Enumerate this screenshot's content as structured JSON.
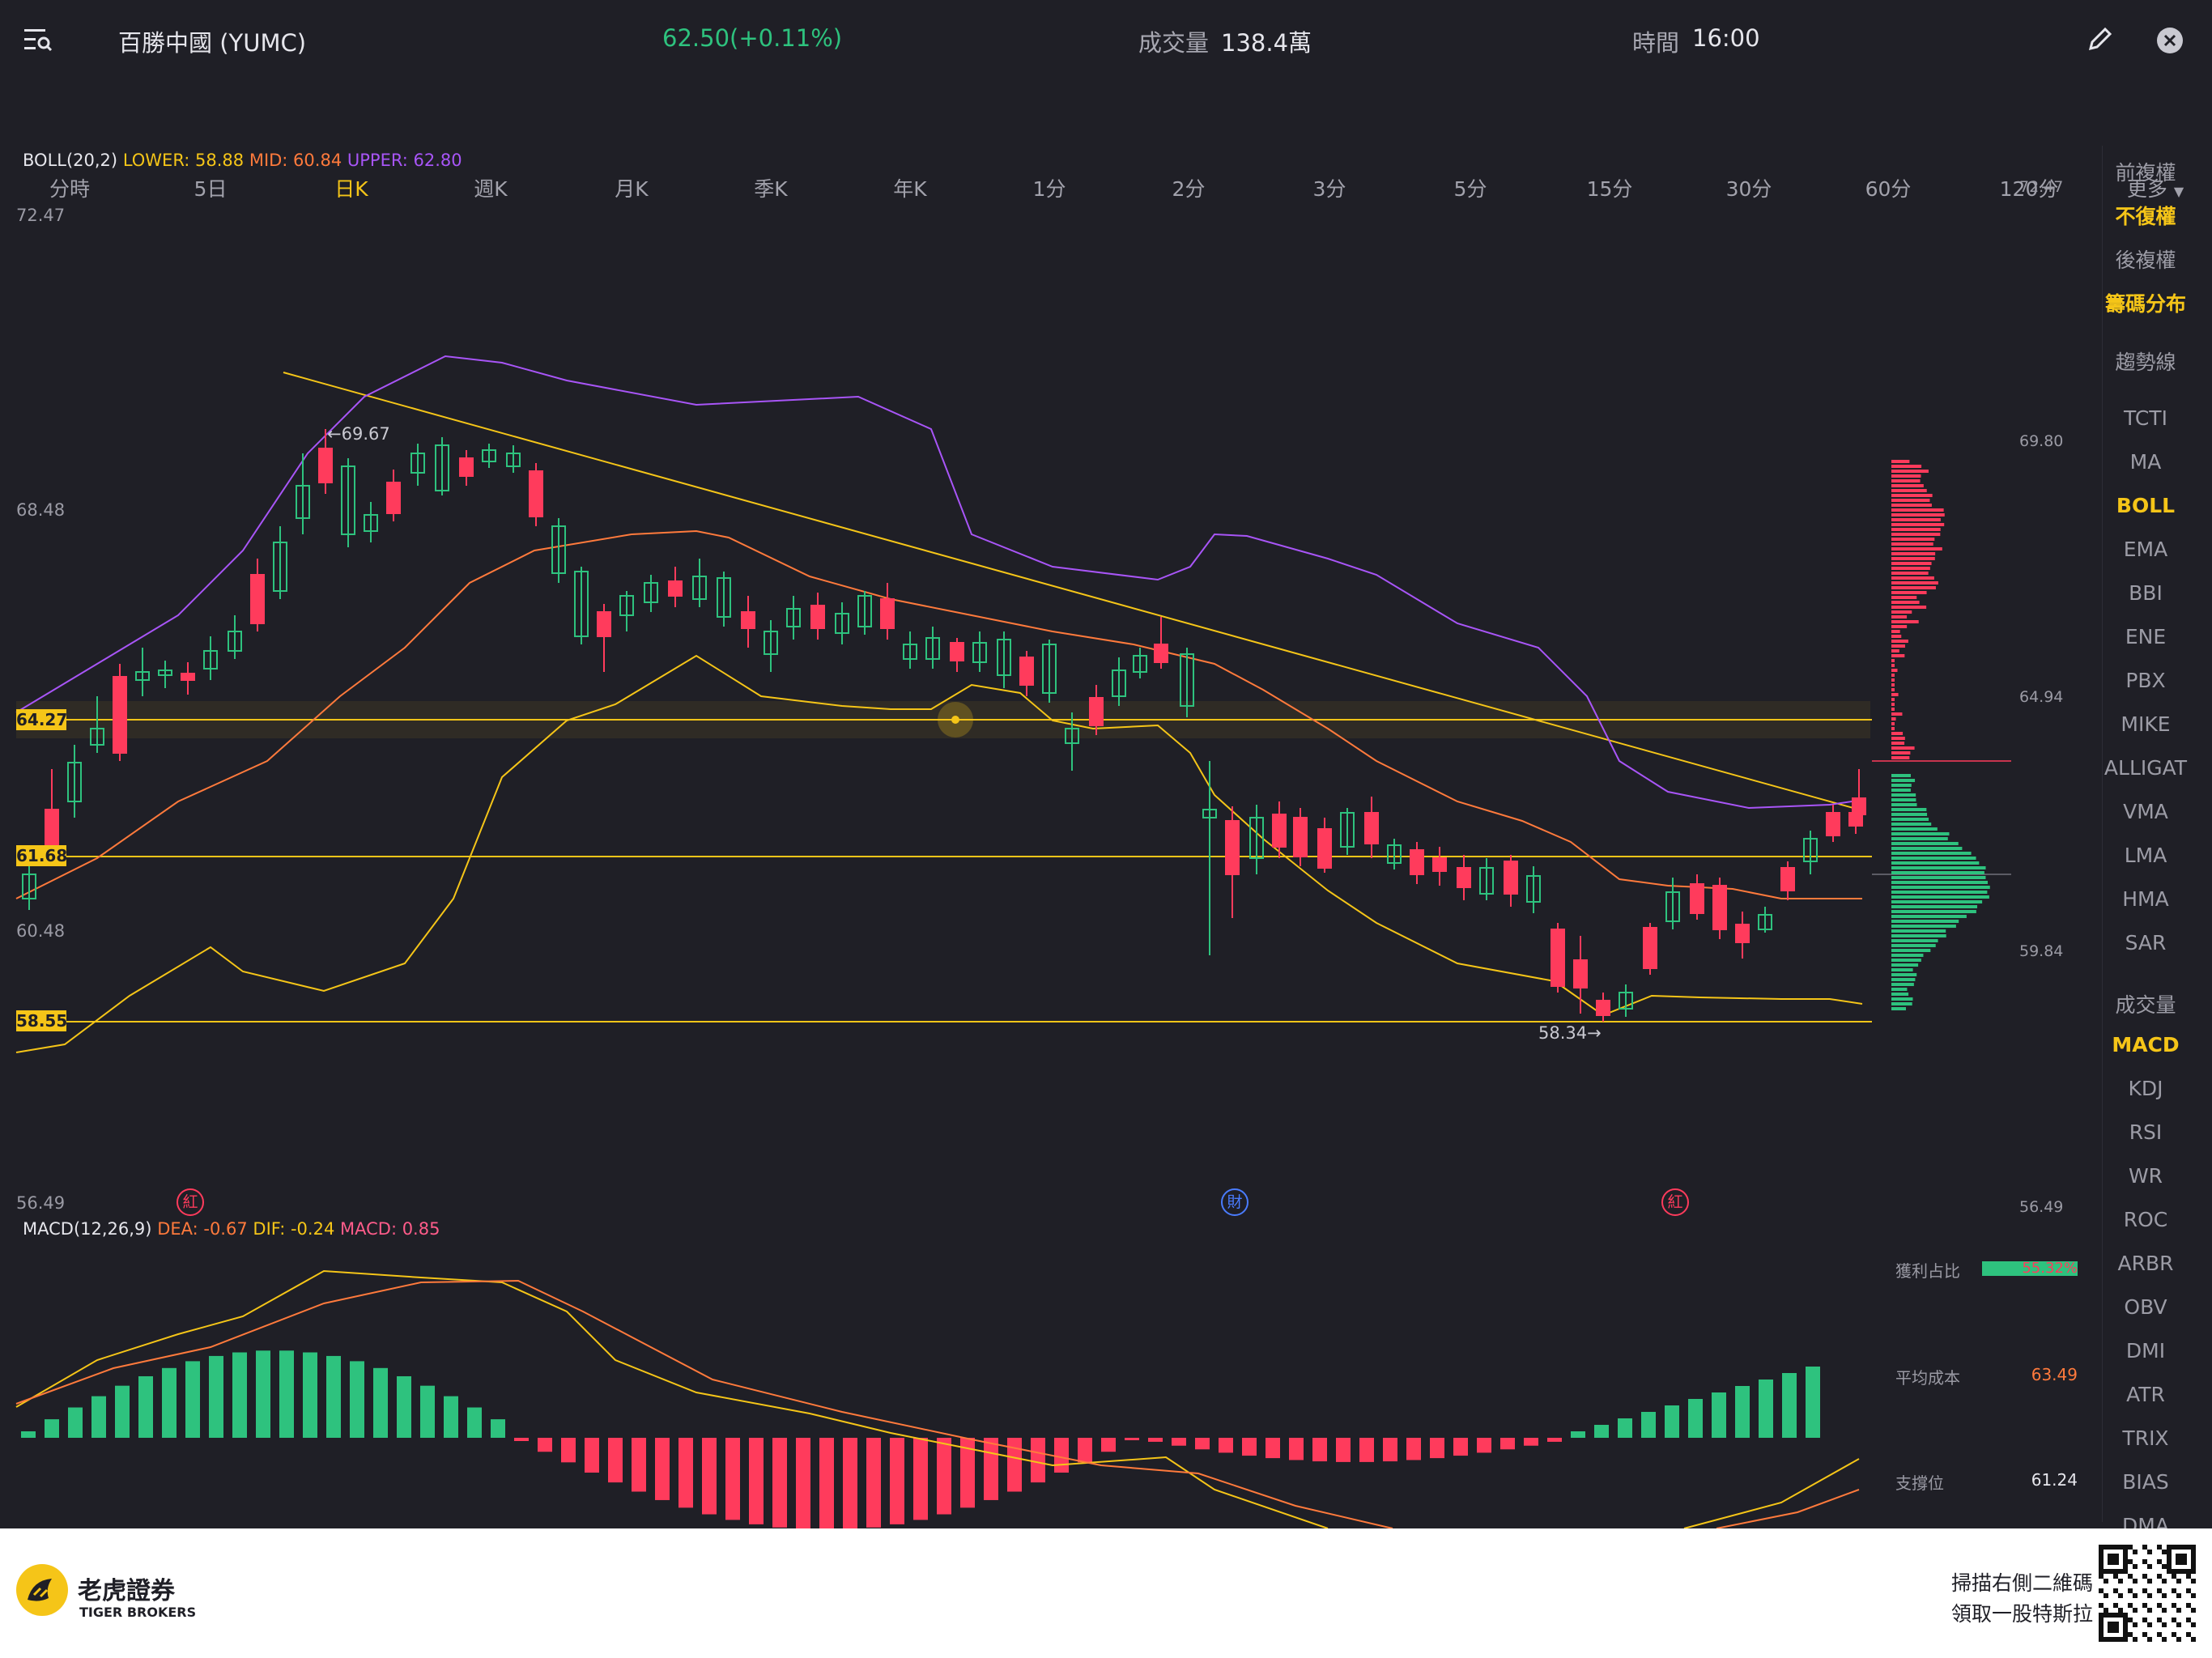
{
  "header": {
    "stock": "百勝中國 (YUMC)",
    "price": "62.50(+0.11%)",
    "volume_label": "成交量",
    "volume": "138.4萬",
    "time_label": "時間",
    "time": "16:00"
  },
  "tabs": [
    "分時",
    "5日",
    "日K",
    "週K",
    "月K",
    "季K",
    "年K",
    "1分",
    "2分",
    "3分",
    "5分",
    "15分",
    "30分",
    "60分",
    "120分",
    "更多"
  ],
  "active_tab": "日K",
  "indicators": {
    "boll_name": "BOLL(20,2)",
    "boll_lower": "LOWER: 58.88",
    "boll_mid": "MID: 60.84",
    "boll_upper": "UPPER: 62.80",
    "macd_name": "MACD(12,26,9)",
    "macd_dea": "DEA: -0.67",
    "macd_dif": "DIF: -0.24",
    "macd_val": "MACD: 0.85"
  },
  "axis": {
    "left": [
      "72.47",
      "68.48",
      "60.48",
      "56.49"
    ],
    "right": [
      "72.47",
      "69.80",
      "64.94",
      "59.84",
      "56.49"
    ],
    "tags": [
      "64.27",
      "61.68",
      "58.55"
    ],
    "hi_mark": "←69.67",
    "lo_mark": "58.34→"
  },
  "events": [
    "紅",
    "財",
    "紅"
  ],
  "right_menu": [
    "前複權",
    "不復權",
    "後複權",
    "籌碼分布",
    "趨勢線",
    "TCTI",
    "MA",
    "BOLL",
    "EMA",
    "BBI",
    "ENE",
    "PBX",
    "MIKE",
    "ALLIGAT",
    "VMA",
    "LMA",
    "HMA",
    "SAR",
    "成交量",
    "MACD",
    "KDJ",
    "RSI",
    "WR",
    "ROC",
    "ARBR",
    "OBV",
    "DMI",
    "ATR",
    "TRIX",
    "BIAS",
    "DMA"
  ],
  "right_menu_highlight": [
    "不復權",
    "籌碼分布",
    "BOLL",
    "MACD"
  ],
  "stats": {
    "profit_label": "獲利占比",
    "profit": "55.32%",
    "avg_cost_label": "平均成本",
    "avg_cost": "63.49",
    "support_label": "支撐位",
    "support": "61.24"
  },
  "footer": {
    "brand": "老虎證券",
    "brand_en": "TIGER BROKERS",
    "promo1": "掃描右側二維碼",
    "promo2": "領取一股特斯拉"
  },
  "colors": {
    "up": "#2ec27e",
    "down": "#ff3b5c",
    "accent": "#f5c518",
    "upper": "#a855f7",
    "mid": "#ff7a3c"
  }
}
